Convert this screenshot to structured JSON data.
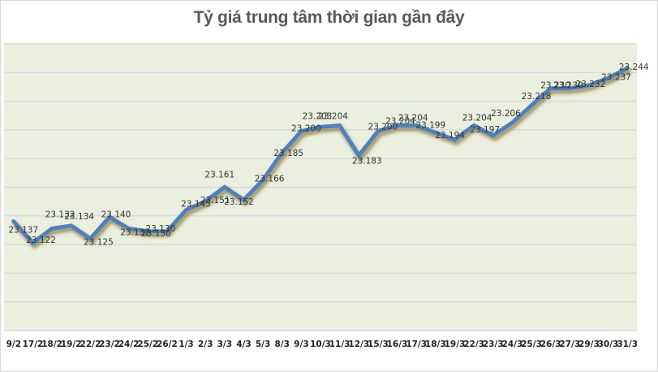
{
  "chart_data": {
    "type": "line",
    "title": "Tỷ giá trung tâm thời gian gần đây",
    "xlabel": "",
    "ylabel": "",
    "categories": [
      "9/2",
      "17/2",
      "18/2",
      "19/2",
      "22/2",
      "23/2",
      "24/2",
      "25/2",
      "26/2",
      "1/3",
      "2/3",
      "3/3",
      "4/3",
      "5/3",
      "8/3",
      "9/3",
      "10/3",
      "11/3",
      "12/3",
      "15/3",
      "16/3",
      "17/3",
      "18/3",
      "19/3",
      "22/3",
      "23/3",
      "24/3",
      "25/3",
      "26/3",
      "27/3",
      "29/3",
      "30/3",
      "31/3"
    ],
    "series": [
      {
        "name": "Tỷ giá trung tâm",
        "values": [
          23.137,
          23.122,
          23.132,
          23.134,
          23.125,
          23.14,
          23.132,
          23.13,
          23.13,
          23.145,
          23.151,
          23.161,
          23.152,
          23.166,
          23.185,
          23.2,
          23.203,
          23.204,
          23.183,
          23.2,
          23.204,
          23.204,
          23.199,
          23.194,
          23.204,
          23.197,
          23.206,
          23.218,
          23.23,
          23.23,
          23.232,
          23.237,
          23.244
        ]
      }
    ],
    "labels": [
      "23.137",
      "23.122",
      "23.132",
      "23.134",
      "23.125",
      "23.140",
      "23.132",
      "23.130",
      "23.130",
      "23.145",
      "23.151",
      "23.161",
      "23.152",
      "23.166",
      "23.185",
      "23.200",
      "23.203",
      "23.204",
      "23.183",
      "23.200",
      "23.204",
      "23.204",
      "23.199",
      "23.194",
      "23.204",
      "23.197",
      "23.206",
      "23.218",
      "23.230",
      "23.230",
      "23.232",
      "23.237",
      "23.244"
    ],
    "ylim": [
      23.07,
      23.27
    ],
    "y_tick_labels_visible": false,
    "grid": true,
    "legend": "none",
    "colors": {
      "line": "#4F81BD",
      "shadow": "#8C7A3A",
      "plot_background": "#EBEFDE",
      "gridline": "#D9D9D9",
      "title": "#595959"
    }
  }
}
